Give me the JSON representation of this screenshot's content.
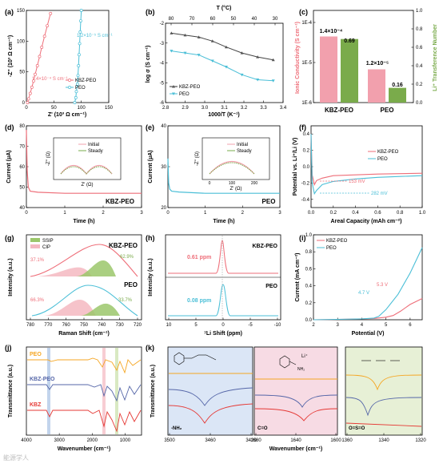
{
  "colors": {
    "pink": "#ee6e79",
    "cyan": "#4bbfd7",
    "green": "#7aab4b",
    "orange": "#f5a623",
    "navy": "#5566a8",
    "red": "#e53935"
  },
  "chart_data": [
    {
      "panel": "(a)",
      "type": "line",
      "xlabel": "Z' (10³ Ω cm⁻¹)",
      "ylabel": "-Z'' (10³ Ω cm⁻¹)",
      "xlim": [
        0,
        150
      ],
      "ylim": [
        0,
        150
      ],
      "xticks": [
        "0",
        "50",
        "100",
        "150"
      ],
      "yticks": [
        "0",
        "50",
        "100",
        "150"
      ],
      "legend": [
        {
          "name": "KBZ-PEO"
        },
        {
          "name": "PEO"
        }
      ],
      "annotations": [
        "1.4×10⁻⁴ S cm⁻¹",
        "1.2×10⁻⁵ S cm⁻¹"
      ],
      "series": [
        {
          "name": "KBZ-PEO",
          "x": [
            2,
            4,
            7,
            10,
            13,
            16,
            20,
            24,
            28,
            33,
            38,
            44
          ],
          "y": [
            0,
            6,
            15,
            25,
            35,
            46,
            60,
            75,
            90,
            108,
            125,
            145
          ]
        },
        {
          "name": "PEO",
          "x": [
            88,
            90,
            91,
            93,
            94,
            95,
            96,
            97,
            98,
            99,
            100
          ],
          "y": [
            0,
            8,
            18,
            30,
            44,
            60,
            78,
            96,
            115,
            133,
            150
          ]
        }
      ]
    },
    {
      "panel": "(b)",
      "type": "line",
      "xlabel": "1000/T (K⁻¹)",
      "ylabel": "log σ (S cm⁻¹)",
      "top_label": "T (°C)",
      "xlim": [
        2.8,
        3.4
      ],
      "ylim": [
        -6,
        -2
      ],
      "xticks": [
        "2.8",
        "2.9",
        "3.0",
        "3.1",
        "3.2",
        "3.3",
        "3.4"
      ],
      "yticks": [
        "-6",
        "-5",
        "-4",
        "-3",
        "-2"
      ],
      "top_ticks": [
        "80",
        "70",
        "60",
        "50",
        "40",
        "30"
      ],
      "legend": [
        {
          "name": "KBZ-PEO"
        },
        {
          "name": "PEO"
        }
      ],
      "series": [
        {
          "name": "KBZ-PEO",
          "x": [
            2.83,
            2.9,
            2.97,
            3.04,
            3.11,
            3.19,
            3.27,
            3.35
          ],
          "y": [
            -2.5,
            -2.6,
            -2.7,
            -2.9,
            -3.2,
            -3.5,
            -3.7,
            -3.85
          ]
        },
        {
          "name": "PEO",
          "x": [
            2.83,
            2.9,
            2.97,
            3.04,
            3.11,
            3.19,
            3.27,
            3.35
          ],
          "y": [
            -3.4,
            -3.5,
            -3.6,
            -3.9,
            -4.2,
            -4.6,
            -4.85,
            -4.9
          ]
        }
      ]
    },
    {
      "panel": "(c)",
      "type": "bar",
      "categories": [
        "KBZ-PEO",
        "PEO"
      ],
      "ylabel_left": "Ionic Conductivity (S cm⁻¹)",
      "ylabel_right": "Li⁺ Transference Number",
      "yticks_left": [
        "1E-6",
        "1E-5",
        "1E-4"
      ],
      "yticks_right": [
        "0.0",
        "0.2",
        "0.4",
        "0.6",
        "0.8",
        "1.0"
      ],
      "conductivity": [
        0.00014,
        1.2e-05
      ],
      "conductivity_labels": [
        "1.4×10⁻⁴",
        "1.2×10⁻⁵"
      ],
      "transference": [
        0.69,
        0.16
      ],
      "transference_labels": [
        "0.69",
        "0.16"
      ]
    },
    {
      "panel": "(d)",
      "type": "line",
      "xlabel": "Time (h)",
      "ylabel": "Current (μA)",
      "label": "KBZ-PEO",
      "xlim": [
        0,
        3
      ],
      "ylim": [
        40,
        80
      ],
      "xticks": [
        "0",
        "1",
        "2",
        "3"
      ],
      "yticks": [
        "40",
        "50",
        "60",
        "70",
        "80"
      ],
      "inset": {
        "xlabel": "Z' (Ω)",
        "ylabel": "-Z'' (Ω)",
        "legend": [
          "Initial",
          "Steady"
        ]
      },
      "series": [
        {
          "name": "KBZ-PEO",
          "x": [
            0,
            0.02,
            0.05,
            0.1,
            0.3,
            1,
            2,
            3
          ],
          "y": [
            78,
            58,
            50,
            48,
            47.5,
            47,
            47,
            47
          ]
        }
      ]
    },
    {
      "panel": "(e)",
      "type": "line",
      "xlabel": "Time (h)",
      "ylabel": "Current (μA)",
      "label": "PEO",
      "xlim": [
        0,
        3
      ],
      "ylim": [
        20,
        40
      ],
      "xticks": [
        "0",
        "1",
        "2",
        "3"
      ],
      "yticks": [
        "20",
        "30",
        "40"
      ],
      "inset": {
        "xlabel": "Z' (Ω)",
        "ylabel": "-Z'' (Ω)",
        "xticks": [
          "0",
          "100",
          "200"
        ],
        "legend": [
          "Initial",
          "Steady"
        ]
      },
      "series": [
        {
          "name": "PEO",
          "x": [
            0,
            0.02,
            0.05,
            0.1,
            0.3,
            1,
            2,
            3
          ],
          "y": [
            32,
            26,
            24.5,
            24,
            23.8,
            23.5,
            23.5,
            23.5
          ]
        }
      ]
    },
    {
      "panel": "(f)",
      "type": "line",
      "xlabel": "Areal Capacity (mAh cm⁻²)",
      "ylabel": "Potential vs. Li⁺/Li (V)",
      "xlim": [
        0,
        1.0
      ],
      "ylim": [
        -0.5,
        0.5
      ],
      "xticks": [
        "0.0",
        "0.2",
        "0.4",
        "0.6",
        "0.8",
        "1.0"
      ],
      "yticks": [
        "-0.5",
        "-0.4",
        "-0.3",
        "-0.2",
        "-0.1",
        "0.0",
        "0.1",
        "0.2",
        "0.3",
        "0.4",
        "0.5"
      ],
      "legend": [
        {
          "name": "KBZ-PEO"
        },
        {
          "name": "PEO"
        }
      ],
      "annotations": [
        "153 mV",
        "282 mV"
      ],
      "series": [
        {
          "name": "KBZ-PEO",
          "x": [
            0,
            0.01,
            0.03,
            0.05,
            0.1,
            0.2,
            0.4,
            0.6,
            0.8,
            1.0
          ],
          "y": [
            0.4,
            -0.1,
            -0.22,
            -0.17,
            -0.14,
            -0.11,
            -0.1,
            -0.09,
            -0.085,
            -0.08
          ]
        },
        {
          "name": "PEO",
          "x": [
            0,
            0.01,
            0.03,
            0.05,
            0.1,
            0.2,
            0.4,
            0.6,
            0.8,
            1.0
          ],
          "y": [
            0.4,
            -0.2,
            -0.33,
            -0.29,
            -0.22,
            -0.18,
            -0.15,
            -0.13,
            -0.12,
            -0.11
          ]
        }
      ]
    },
    {
      "panel": "(g)",
      "type": "line",
      "xlabel": "Raman Shift (cm⁻¹)",
      "ylabel": "Intensity (a.u.)",
      "xlim": [
        780,
        720
      ],
      "xticks": [
        "780",
        "770",
        "760",
        "750",
        "740",
        "730",
        "720"
      ],
      "legend": [
        {
          "name": "SSIP"
        },
        {
          "name": "CIP"
        }
      ],
      "labels": [
        "KBZ-PEO",
        "PEO"
      ],
      "percent_labels": {
        "KBZ_CIP": "37.1%",
        "KBZ_SSIP": "62.9%",
        "PEO_CIP": "66.3%",
        "PEO_SSIP": "33.7%"
      }
    },
    {
      "panel": "(h)",
      "type": "line",
      "xlabel": "⁷Li Shift (ppm)",
      "ylabel": "Intensity (a.u.)",
      "xlim": [
        10,
        -10
      ],
      "xticks": [
        "10",
        "5",
        "0",
        "-5",
        "-10"
      ],
      "labels": [
        "KBZ-PEO",
        "PEO"
      ],
      "peak_labels": [
        "0.61 ppm",
        "0.08 ppm"
      ]
    },
    {
      "panel": "(i)",
      "type": "line",
      "xlabel": "Potential (V)",
      "ylabel": "Current (mA cm⁻²)",
      "xlim": [
        2,
        6.5
      ],
      "ylim": [
        0,
        1.0
      ],
      "xticks": [
        "2",
        "3",
        "4",
        "5",
        "6"
      ],
      "yticks": [
        "0.0",
        "0.2",
        "0.4",
        "0.6",
        "0.8",
        "1.0"
      ],
      "legend": [
        {
          "name": "KBZ-PEO"
        },
        {
          "name": "PEO"
        }
      ],
      "annotations": [
        "4.7 V",
        "5.3 V"
      ],
      "series": [
        {
          "name": "KBZ-PEO",
          "x": [
            2,
            3,
            4,
            4.5,
            5,
            5.3,
            5.6,
            6,
            6.5
          ],
          "y": [
            0,
            0.005,
            0.01,
            0.015,
            0.03,
            0.05,
            0.1,
            0.18,
            0.25
          ]
        },
        {
          "name": "PEO",
          "x": [
            2,
            3,
            4,
            4.5,
            4.7,
            5,
            5.5,
            6,
            6.5
          ],
          "y": [
            0,
            0.005,
            0.01,
            0.02,
            0.04,
            0.12,
            0.3,
            0.55,
            0.85
          ]
        }
      ]
    },
    {
      "panel": "(j)",
      "type": "line",
      "xlabel": "Wavenumber (cm⁻¹)",
      "ylabel": "Transmittance (a.u.)",
      "xlim": [
        4000,
        500
      ],
      "xticks": [
        "4000",
        "3000",
        "2000",
        "1000"
      ],
      "labels": [
        "PEO",
        "KBZ-PEO",
        "KBZ"
      ]
    },
    {
      "panel": "(k)",
      "type": "line",
      "xlabel": "Wavenumber (cm⁻¹)",
      "ylabel": "Transmittance (a.u.)",
      "subpanels": [
        {
          "xticks": [
            "3500",
            "3460",
            "3420"
          ],
          "label": "-NH₂"
        },
        {
          "xticks": [
            "1680",
            "1640",
            "1600"
          ],
          "label": "C=O"
        },
        {
          "xticks": [
            "1360",
            "1340",
            "1320"
          ],
          "label": "O=S=O"
        }
      ],
      "structure_labels": [
        "Li⁺",
        "NH₂"
      ]
    }
  ],
  "watermark": "能源学人"
}
